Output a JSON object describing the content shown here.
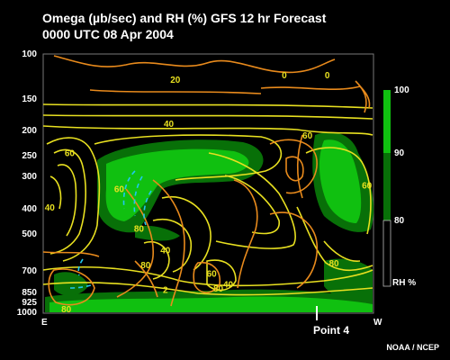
{
  "chart_data": {
    "type": "heatmap",
    "title_line1": "Omega (µb/sec) and RH (%) GFS 12 hr Forecast",
    "title_line2": "0000 UTC  08 Apr 2004",
    "y_axis": {
      "scale": "log-pressure",
      "ticks": [
        "100",
        "150",
        "200",
        "250",
        "300",
        "400",
        "500",
        "700",
        "850",
        "925",
        "1000"
      ],
      "range": [
        100,
        1000
      ]
    },
    "x_axis": {
      "left_label": "E",
      "right_label": "W"
    },
    "rh_colorbar": {
      "ticks": [
        "100",
        "90",
        "80"
      ],
      "unit_label": "RH %",
      "colors": {
        "above_90": "#10c010",
        "80_to_90": "#087008",
        "below_80": "#000000"
      }
    },
    "contour_labels": [
      {
        "text": "20",
        "level": 125,
        "x": 0.4
      },
      {
        "text": "40",
        "level": 185,
        "x": 0.38
      },
      {
        "text": "60",
        "level": 205,
        "x": 0.8
      },
      {
        "text": "60",
        "level": 240,
        "x": 0.08
      },
      {
        "text": "40",
        "level": 390,
        "x": 0.02
      },
      {
        "text": "60",
        "level": 330,
        "x": 0.23
      },
      {
        "text": "80",
        "level": 470,
        "x": 0.29
      },
      {
        "text": "40",
        "level": 570,
        "x": 0.37
      },
      {
        "text": "60",
        "level": 320,
        "x": 0.98
      },
      {
        "text": "80",
        "level": 650,
        "x": 0.31
      },
      {
        "text": "60",
        "level": 700,
        "x": 0.51
      },
      {
        "text": "80",
        "level": 640,
        "x": 0.88
      },
      {
        "text": "40",
        "level": 770,
        "x": 0.56
      },
      {
        "text": "80",
        "level": 800,
        "x": 0.53
      },
      {
        "text": "80",
        "level": 960,
        "x": 0.07
      },
      {
        "text": "2",
        "level": 810,
        "x": 0.37
      },
      {
        "text": "0",
        "level": 120,
        "x": 0.73
      },
      {
        "text": "0",
        "level": 120,
        "x": 0.86
      }
    ],
    "marker": {
      "label": "Point 4"
    },
    "credit": "NOAA / NCEP"
  }
}
